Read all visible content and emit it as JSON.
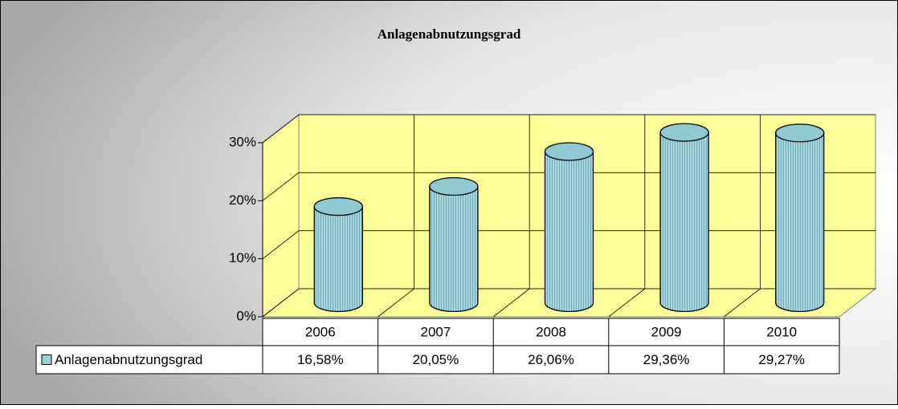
{
  "chart_data": {
    "type": "bar",
    "title": "Anlagenabnutzungsgrad",
    "categories": [
      "2006",
      "2007",
      "2008",
      "2009",
      "2010"
    ],
    "series": [
      {
        "name": "Anlagenabnutzungsgrad",
        "color": "#9fd3da",
        "values": [
          16.58,
          20.05,
          26.06,
          29.36,
          29.27
        ],
        "value_labels": [
          "16,58%",
          "20,05%",
          "26,06%",
          "29,36%",
          "29,27%"
        ]
      }
    ],
    "ylim": [
      0,
      30
    ],
    "yticks": [
      {
        "value": 0,
        "label": "0%"
      },
      {
        "value": 10,
        "label": "10%"
      },
      {
        "value": 20,
        "label": "20%"
      },
      {
        "value": 30,
        "label": "30%"
      }
    ],
    "grid": true
  }
}
